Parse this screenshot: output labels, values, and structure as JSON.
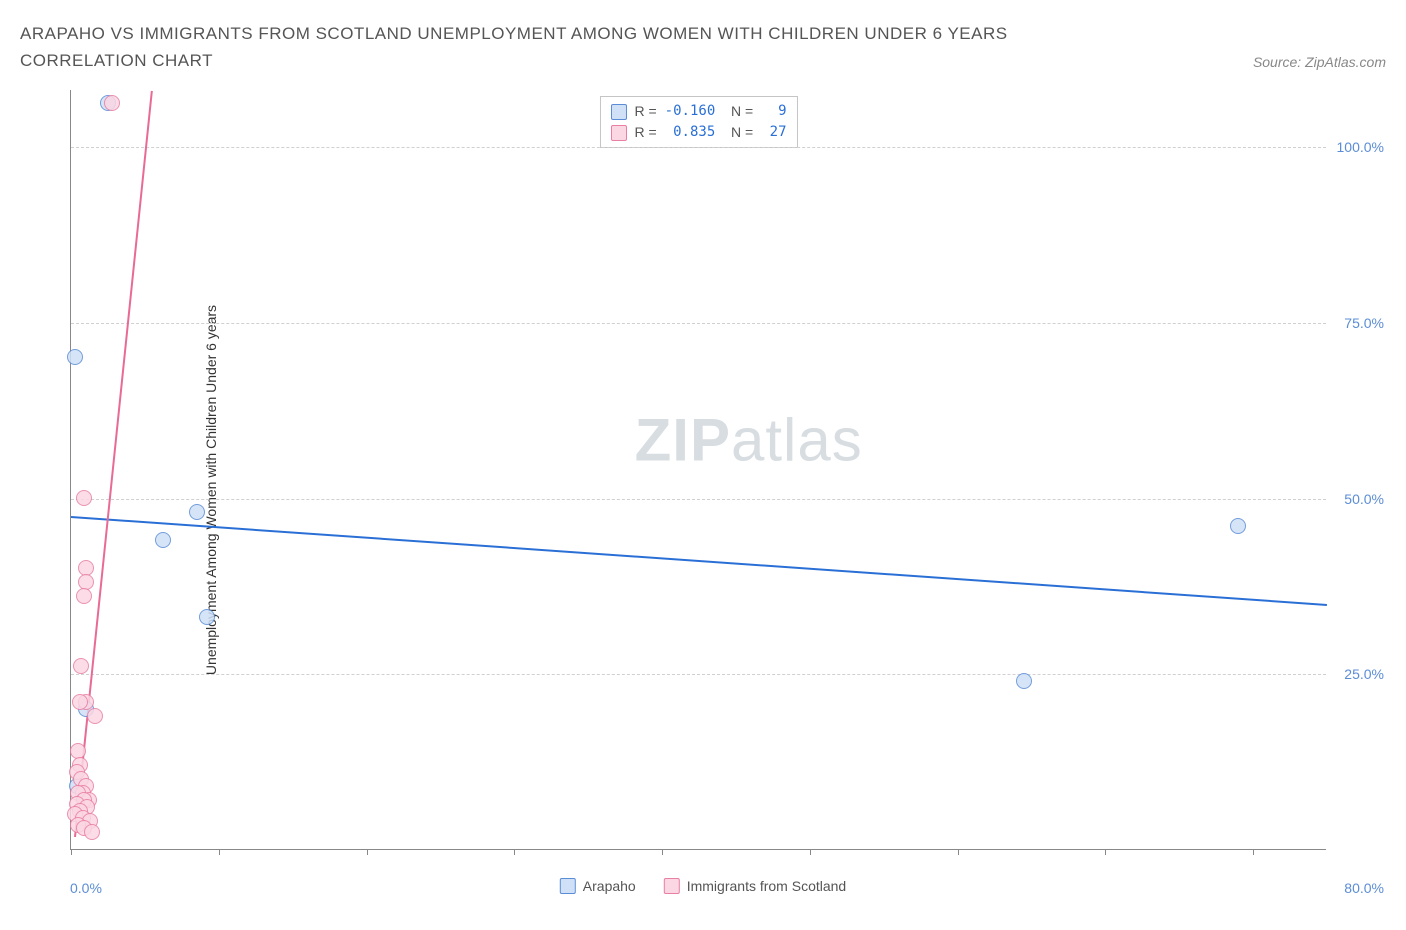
{
  "header": {
    "title": "ARAPAHO VS IMMIGRANTS FROM SCOTLAND UNEMPLOYMENT AMONG WOMEN WITH CHILDREN UNDER 6 YEARS CORRELATION CHART",
    "source": "Source: ZipAtlas.com"
  },
  "watermark": {
    "part1": "ZIP",
    "part2": "atlas"
  },
  "chart": {
    "type": "scatter",
    "y_axis_label": "Unemployment Among Women with Children Under 6 years",
    "xlim": [
      0,
      85
    ],
    "ylim": [
      0,
      108
    ],
    "x_ticks": [
      0,
      10,
      20,
      30,
      40,
      50,
      60,
      70,
      80
    ],
    "x_tick_labels": {
      "min": "0.0%",
      "max": "80.0%"
    },
    "y_gridlines": [
      {
        "v": 25,
        "label": "25.0%"
      },
      {
        "v": 50,
        "label": "50.0%"
      },
      {
        "v": 75,
        "label": "75.0%"
      },
      {
        "v": 100,
        "label": "100.0%"
      }
    ],
    "background_color": "#ffffff",
    "grid_color": "#d0d0d0",
    "axis_color": "#888888",
    "tick_label_color": "#5b8dd6",
    "series": [
      {
        "key": "arapaho",
        "label": "Arapaho",
        "marker_fill": "#cfe0f7",
        "marker_stroke": "#5b8dd6",
        "marker_radius": 8,
        "trend_color": "#2a6fd6",
        "trend_width": 2,
        "trend": {
          "x1": 0,
          "y1": 47.5,
          "x2": 85,
          "y2": 35
        },
        "stats": {
          "R": "-0.160",
          "N": "9"
        },
        "points": [
          {
            "x": 0.3,
            "y": 70
          },
          {
            "x": 2.5,
            "y": 106
          },
          {
            "x": 8.5,
            "y": 48
          },
          {
            "x": 6.2,
            "y": 44
          },
          {
            "x": 9.2,
            "y": 33
          },
          {
            "x": 64.5,
            "y": 24
          },
          {
            "x": 79,
            "y": 46
          },
          {
            "x": 1.0,
            "y": 20
          },
          {
            "x": 0.4,
            "y": 9
          }
        ]
      },
      {
        "key": "scotland",
        "label": "Immigrants from Scotland",
        "marker_fill": "#fbd7e3",
        "marker_stroke": "#e97fa3",
        "marker_radius": 8,
        "trend_color": "#e86a95",
        "trend_width": 2,
        "trend": {
          "x1": 0.3,
          "y1": 2,
          "x2": 5.5,
          "y2": 108
        },
        "stats": {
          "R": "0.835",
          "N": "27"
        },
        "points": [
          {
            "x": 2.8,
            "y": 106
          },
          {
            "x": 0.9,
            "y": 50
          },
          {
            "x": 1.0,
            "y": 40
          },
          {
            "x": 1.0,
            "y": 38
          },
          {
            "x": 0.9,
            "y": 36
          },
          {
            "x": 0.7,
            "y": 26
          },
          {
            "x": 1.0,
            "y": 21
          },
          {
            "x": 1.6,
            "y": 19
          },
          {
            "x": 0.6,
            "y": 21
          },
          {
            "x": 0.5,
            "y": 14
          },
          {
            "x": 0.6,
            "y": 12
          },
          {
            "x": 0.4,
            "y": 11
          },
          {
            "x": 0.7,
            "y": 10
          },
          {
            "x": 1.0,
            "y": 9
          },
          {
            "x": 0.8,
            "y": 8
          },
          {
            "x": 0.5,
            "y": 8
          },
          {
            "x": 1.2,
            "y": 7
          },
          {
            "x": 0.9,
            "y": 7
          },
          {
            "x": 0.4,
            "y": 6.5
          },
          {
            "x": 1.1,
            "y": 6
          },
          {
            "x": 0.6,
            "y": 5.5
          },
          {
            "x": 0.3,
            "y": 5
          },
          {
            "x": 0.8,
            "y": 4.5
          },
          {
            "x": 1.3,
            "y": 4
          },
          {
            "x": 0.5,
            "y": 3.5
          },
          {
            "x": 0.9,
            "y": 3
          },
          {
            "x": 1.4,
            "y": 2.5
          }
        ]
      }
    ],
    "legend_top_labels": {
      "R": "R =",
      "N": "N ="
    },
    "legend_bottom": [
      {
        "series": "arapaho"
      },
      {
        "series": "scotland"
      }
    ]
  }
}
